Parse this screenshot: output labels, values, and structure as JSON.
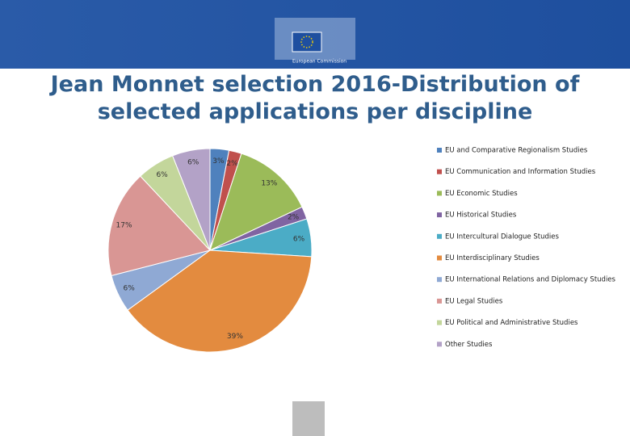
{
  "header": {
    "logo_text": "European Commission"
  },
  "chart_data": {
    "type": "pie",
    "title": "Jean Monnet selection 2016-Distribution of selected applications per discipline",
    "categories": [
      "EU and Comparative Regionalism Studies",
      "EU Communication and Information Studies",
      "EU Economic Studies",
      "EU Historical Studies",
      "EU Intercultural Dialogue Studies",
      "EU Interdisciplinary Studies",
      "EU International Relations and Diplomacy Studies",
      "EU Legal Studies",
      "EU Political and Administrative Studies",
      "Other Studies"
    ],
    "values": [
      3,
      2,
      13,
      2,
      6,
      39,
      6,
      17,
      6,
      6
    ],
    "value_labels": [
      "3%",
      "2%",
      "13%",
      "2%",
      "6%",
      "39%",
      "6%",
      "17%",
      "6%",
      "6%"
    ],
    "colors": [
      "#4f81bd",
      "#c0504d",
      "#9bbb59",
      "#8064a2",
      "#4bacc6",
      "#e38b3f",
      "#8fa9d4",
      "#d99694",
      "#c3d69b",
      "#b3a2c7"
    ],
    "legend": "right"
  }
}
